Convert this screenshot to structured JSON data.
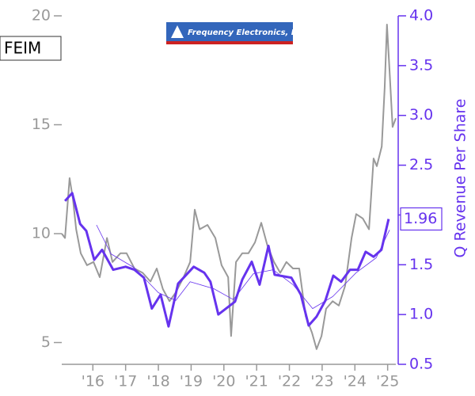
{
  "chart_data": {
    "type": "line",
    "ticker": "FEIM",
    "logo": "Frequency Electronics, Inc.",
    "y2label": "Q Revenue Per Share",
    "xlim": [
      2015.05,
      2025.25
    ],
    "xticks": [
      {
        "value": 2016,
        "label": "'16"
      },
      {
        "value": 2017,
        "label": "'17"
      },
      {
        "value": 2018,
        "label": "'18"
      },
      {
        "value": 2019,
        "label": "'19"
      },
      {
        "value": 2020,
        "label": "'20"
      },
      {
        "value": 2021,
        "label": "'21"
      },
      {
        "value": 2022,
        "label": "'22"
      },
      {
        "value": 2023,
        "label": "'23"
      },
      {
        "value": 2024,
        "label": "'24"
      },
      {
        "value": 2025,
        "label": "'25"
      }
    ],
    "ylim": [
      4,
      20
    ],
    "yticks": [
      5,
      10,
      15,
      20
    ],
    "y2lim": [
      0.5,
      4.0
    ],
    "y2ticks": [
      0.5,
      {
        "value": 1.0,
        "label": "1.0"
      },
      1.5,
      {
        "value": 2.0,
        "label": "2.0"
      },
      2.5,
      {
        "value": 3.0,
        "label": "3.0"
      },
      3.5,
      {
        "value": 4.0,
        "label": "4.0"
      }
    ],
    "series": [
      {
        "color": "#999999",
        "axis": "y",
        "width": 2,
        "x": [
          2015.05,
          2015.15,
          2015.29,
          2015.39,
          2015.49,
          2015.63,
          2015.82,
          2016.02,
          2016.21,
          2016.43,
          2016.6,
          2016.84,
          2017.03,
          2017.27,
          2017.52,
          2017.76,
          2017.95,
          2018.14,
          2018.34,
          2018.53,
          2018.77,
          2018.97,
          2019.11,
          2019.26,
          2019.5,
          2019.74,
          2019.93,
          2020.13,
          2020.22,
          2020.37,
          2020.56,
          2020.75,
          2020.95,
          2021.14,
          2021.33,
          2021.53,
          2021.72,
          2021.91,
          2022.11,
          2022.3,
          2022.5,
          2022.69,
          2022.83,
          2022.98,
          2023.12,
          2023.32,
          2023.51,
          2023.7,
          2023.9,
          2024.04,
          2024.24,
          2024.43,
          2024.57,
          2024.67,
          2024.82,
          2024.91,
          2024.98,
          2025.06,
          2025.15,
          2025.25
        ],
        "values": [
          10.0,
          9.8,
          12.55,
          11.6,
          10.2,
          9.1,
          8.55,
          8.7,
          8.0,
          9.8,
          8.7,
          9.1,
          9.1,
          8.4,
          8.2,
          7.8,
          8.4,
          7.45,
          6.9,
          7.3,
          8.0,
          8.7,
          11.1,
          10.2,
          10.4,
          9.8,
          8.55,
          8.0,
          5.3,
          8.7,
          9.1,
          9.1,
          9.6,
          10.5,
          9.45,
          8.7,
          8.2,
          8.7,
          8.4,
          8.4,
          6.2,
          5.45,
          4.7,
          5.3,
          6.55,
          6.9,
          6.7,
          7.6,
          9.8,
          10.9,
          10.7,
          10.2,
          13.45,
          13.1,
          14.0,
          16.7,
          19.6,
          17.45,
          14.9,
          15.3
        ]
      },
      {
        "color": "#6633ee",
        "axis": "y2",
        "width": 0.8,
        "x": [
          2016.11,
          2016.55,
          2017.27,
          2018.0,
          2018.53,
          2018.97,
          2019.69,
          2020.29,
          2020.9,
          2021.5,
          2022.11,
          2022.71,
          2023.32,
          2024.04,
          2024.65,
          2025.06
        ],
        "values": [
          1.9,
          1.61,
          1.47,
          1.22,
          1.14,
          1.33,
          1.26,
          1.15,
          1.41,
          1.45,
          1.3,
          1.06,
          1.18,
          1.42,
          1.57,
          1.85
        ]
      },
      {
        "color": "#6633ee",
        "axis": "y2",
        "width": 3,
        "x": [
          2015.15,
          2015.37,
          2015.61,
          2015.8,
          2016.04,
          2016.28,
          2016.62,
          2017.0,
          2017.27,
          2017.56,
          2017.8,
          2018.07,
          2018.31,
          2018.6,
          2019.08,
          2019.4,
          2019.59,
          2019.83,
          2020.34,
          2020.56,
          2020.85,
          2021.09,
          2021.36,
          2021.55,
          2022.06,
          2022.35,
          2022.59,
          2022.83,
          2023.1,
          2023.34,
          2023.58,
          2023.85,
          2024.09,
          2024.33,
          2024.57,
          2024.81,
          2025.03
        ],
        "values": [
          2.14,
          2.22,
          1.91,
          1.84,
          1.55,
          1.65,
          1.45,
          1.48,
          1.45,
          1.37,
          1.06,
          1.2,
          0.88,
          1.31,
          1.48,
          1.42,
          1.33,
          1.0,
          1.13,
          1.35,
          1.53,
          1.3,
          1.69,
          1.4,
          1.37,
          1.2,
          0.89,
          0.98,
          1.14,
          1.39,
          1.33,
          1.45,
          1.45,
          1.63,
          1.58,
          1.65,
          1.96
        ]
      }
    ]
  }
}
